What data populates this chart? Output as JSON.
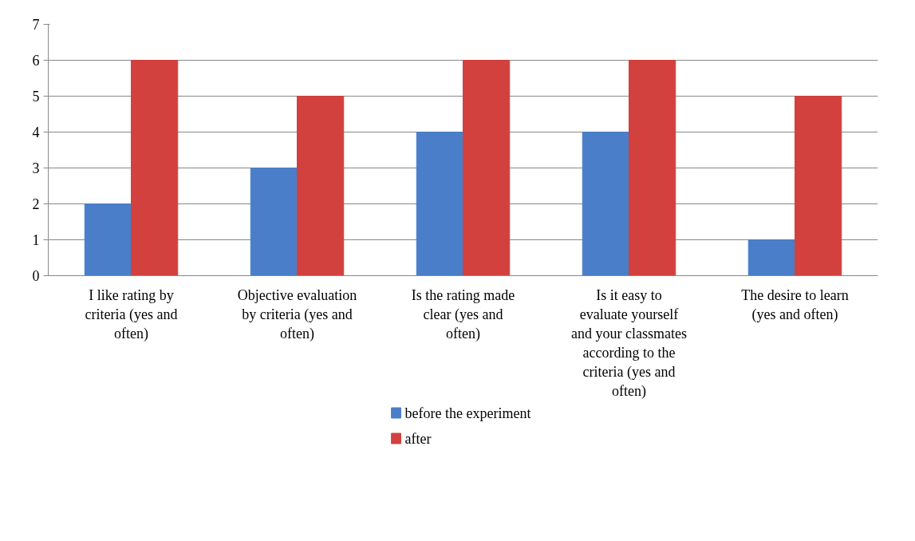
{
  "chart_data": {
    "type": "bar",
    "categories": [
      "I like rating by criteria (yes and often)",
      "Objective evaluation by criteria (yes and often)",
      "Is the rating made clear (yes and often)",
      "Is it easy to evaluate yourself and your classmates according to the criteria (yes and often)",
      "The desire to learn (yes and often)"
    ],
    "series": [
      {
        "name": "before the experiment",
        "color": "#4a7ec8",
        "values": [
          2,
          3,
          4,
          4,
          1
        ]
      },
      {
        "name": "after",
        "color": "#d2413e",
        "values": [
          6,
          5,
          6,
          6,
          5
        ]
      }
    ],
    "ylim": [
      0,
      7
    ],
    "yticks": [
      0,
      1,
      2,
      3,
      4,
      5,
      6,
      7
    ],
    "grid": "y",
    "legend": "bottom"
  }
}
